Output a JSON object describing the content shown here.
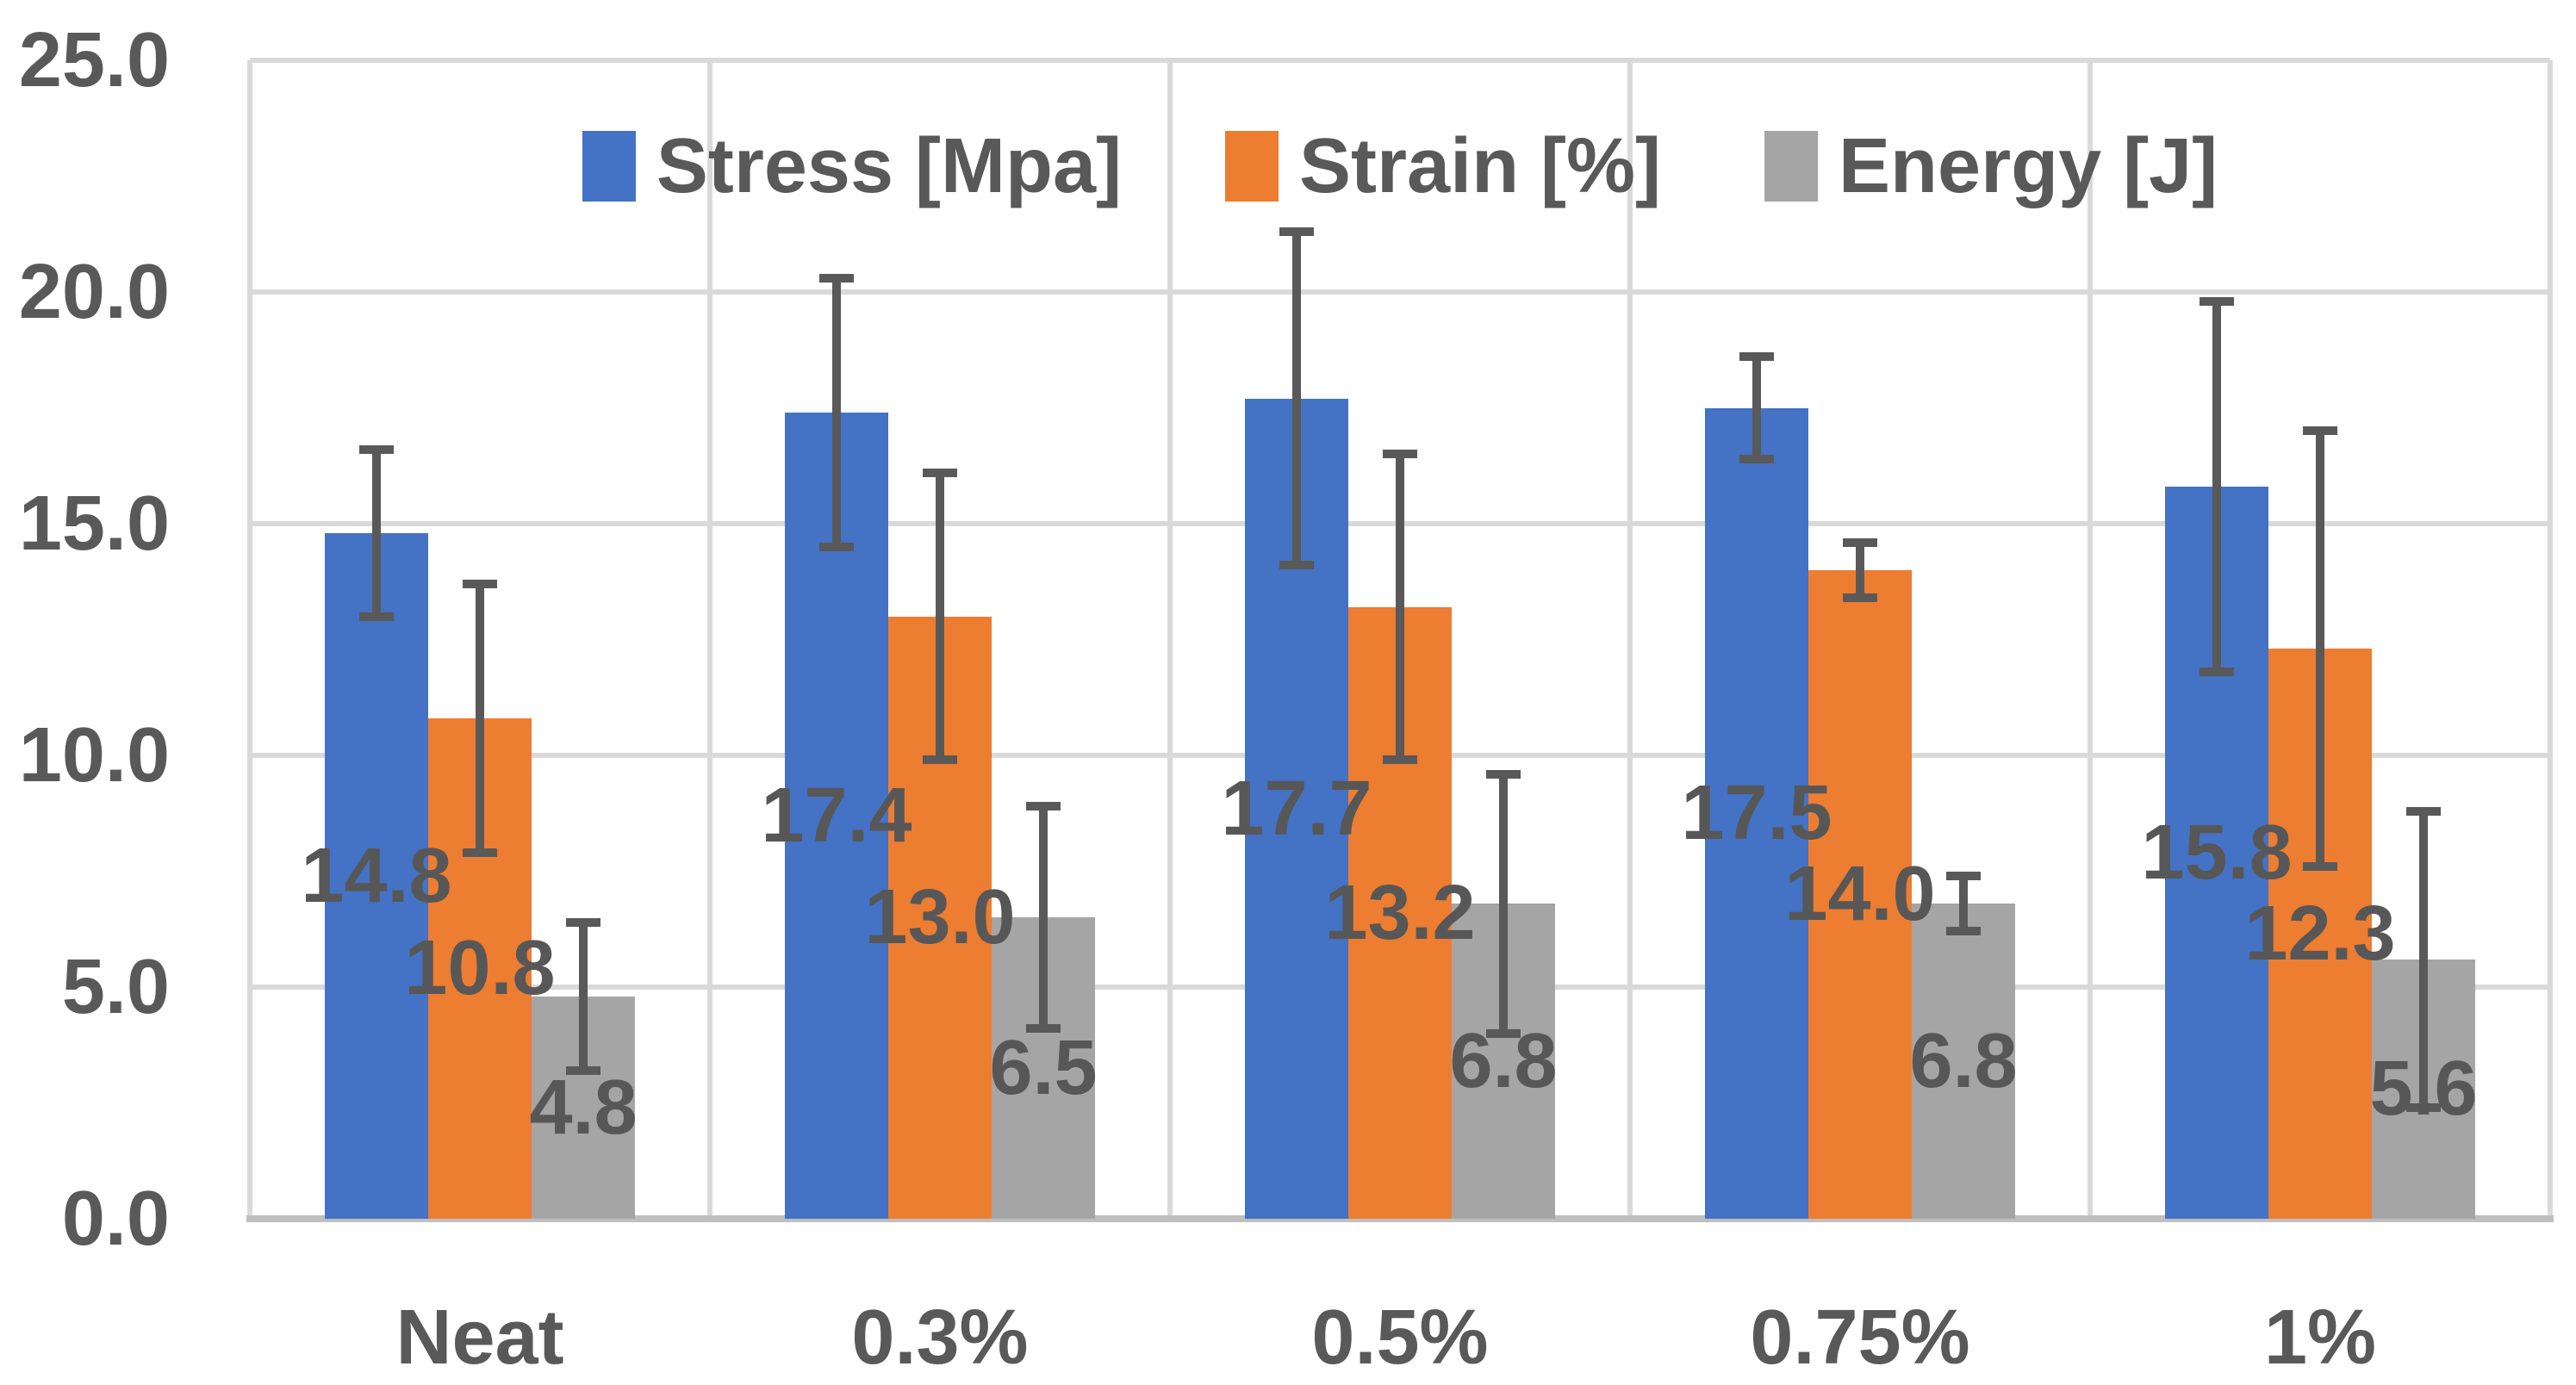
{
  "chart_data": {
    "type": "bar",
    "title": "",
    "categories": [
      "Neat",
      "0.3%",
      "0.5%",
      "0.75%",
      "1%"
    ],
    "series": [
      {
        "name": "Stress [Mpa]",
        "color": "#4472C4",
        "values": [
          14.8,
          17.4,
          17.7,
          17.5,
          15.8
        ],
        "labels": [
          "14.8",
          "17.4",
          "17.7",
          "17.5",
          "15.8"
        ],
        "error_plus_minus": [
          1.8,
          2.9,
          3.6,
          1.1,
          4.0
        ]
      },
      {
        "name": "Strain [%]",
        "color": "#ED7D31",
        "values": [
          10.8,
          13.0,
          13.2,
          14.0,
          12.3
        ],
        "labels": [
          "10.8",
          "13.0",
          "13.2",
          "14.0",
          "12.3"
        ],
        "error_plus_minus": [
          2.9,
          3.1,
          3.3,
          0.6,
          4.7
        ]
      },
      {
        "name": "Energy [J]",
        "color": "#A5A5A5",
        "values": [
          4.8,
          6.5,
          6.8,
          6.8,
          5.6
        ],
        "labels": [
          "4.8",
          "6.5",
          "6.8",
          "6.8",
          "5.6"
        ],
        "error_plus_minus": [
          1.6,
          2.4,
          2.8,
          0.6,
          3.2
        ]
      }
    ],
    "xlabel": "",
    "ylabel": "",
    "ylim": [
      0,
      25
    ],
    "ytick_step": 5,
    "ytick_labels": [
      "0.0",
      "5.0",
      "10.0",
      "15.0",
      "20.0",
      "25.0"
    ],
    "grid": true,
    "legend_position": "top-inside",
    "data_labels": "inside-center",
    "error_bars": true
  },
  "style": {
    "background": "#FFFFFF",
    "gridline_color": "#D9D9D9",
    "axis_line_color": "#BFBFBF",
    "tick_text_color": "#595959",
    "data_label_color": "#575757",
    "error_bar_color": "#595959"
  }
}
